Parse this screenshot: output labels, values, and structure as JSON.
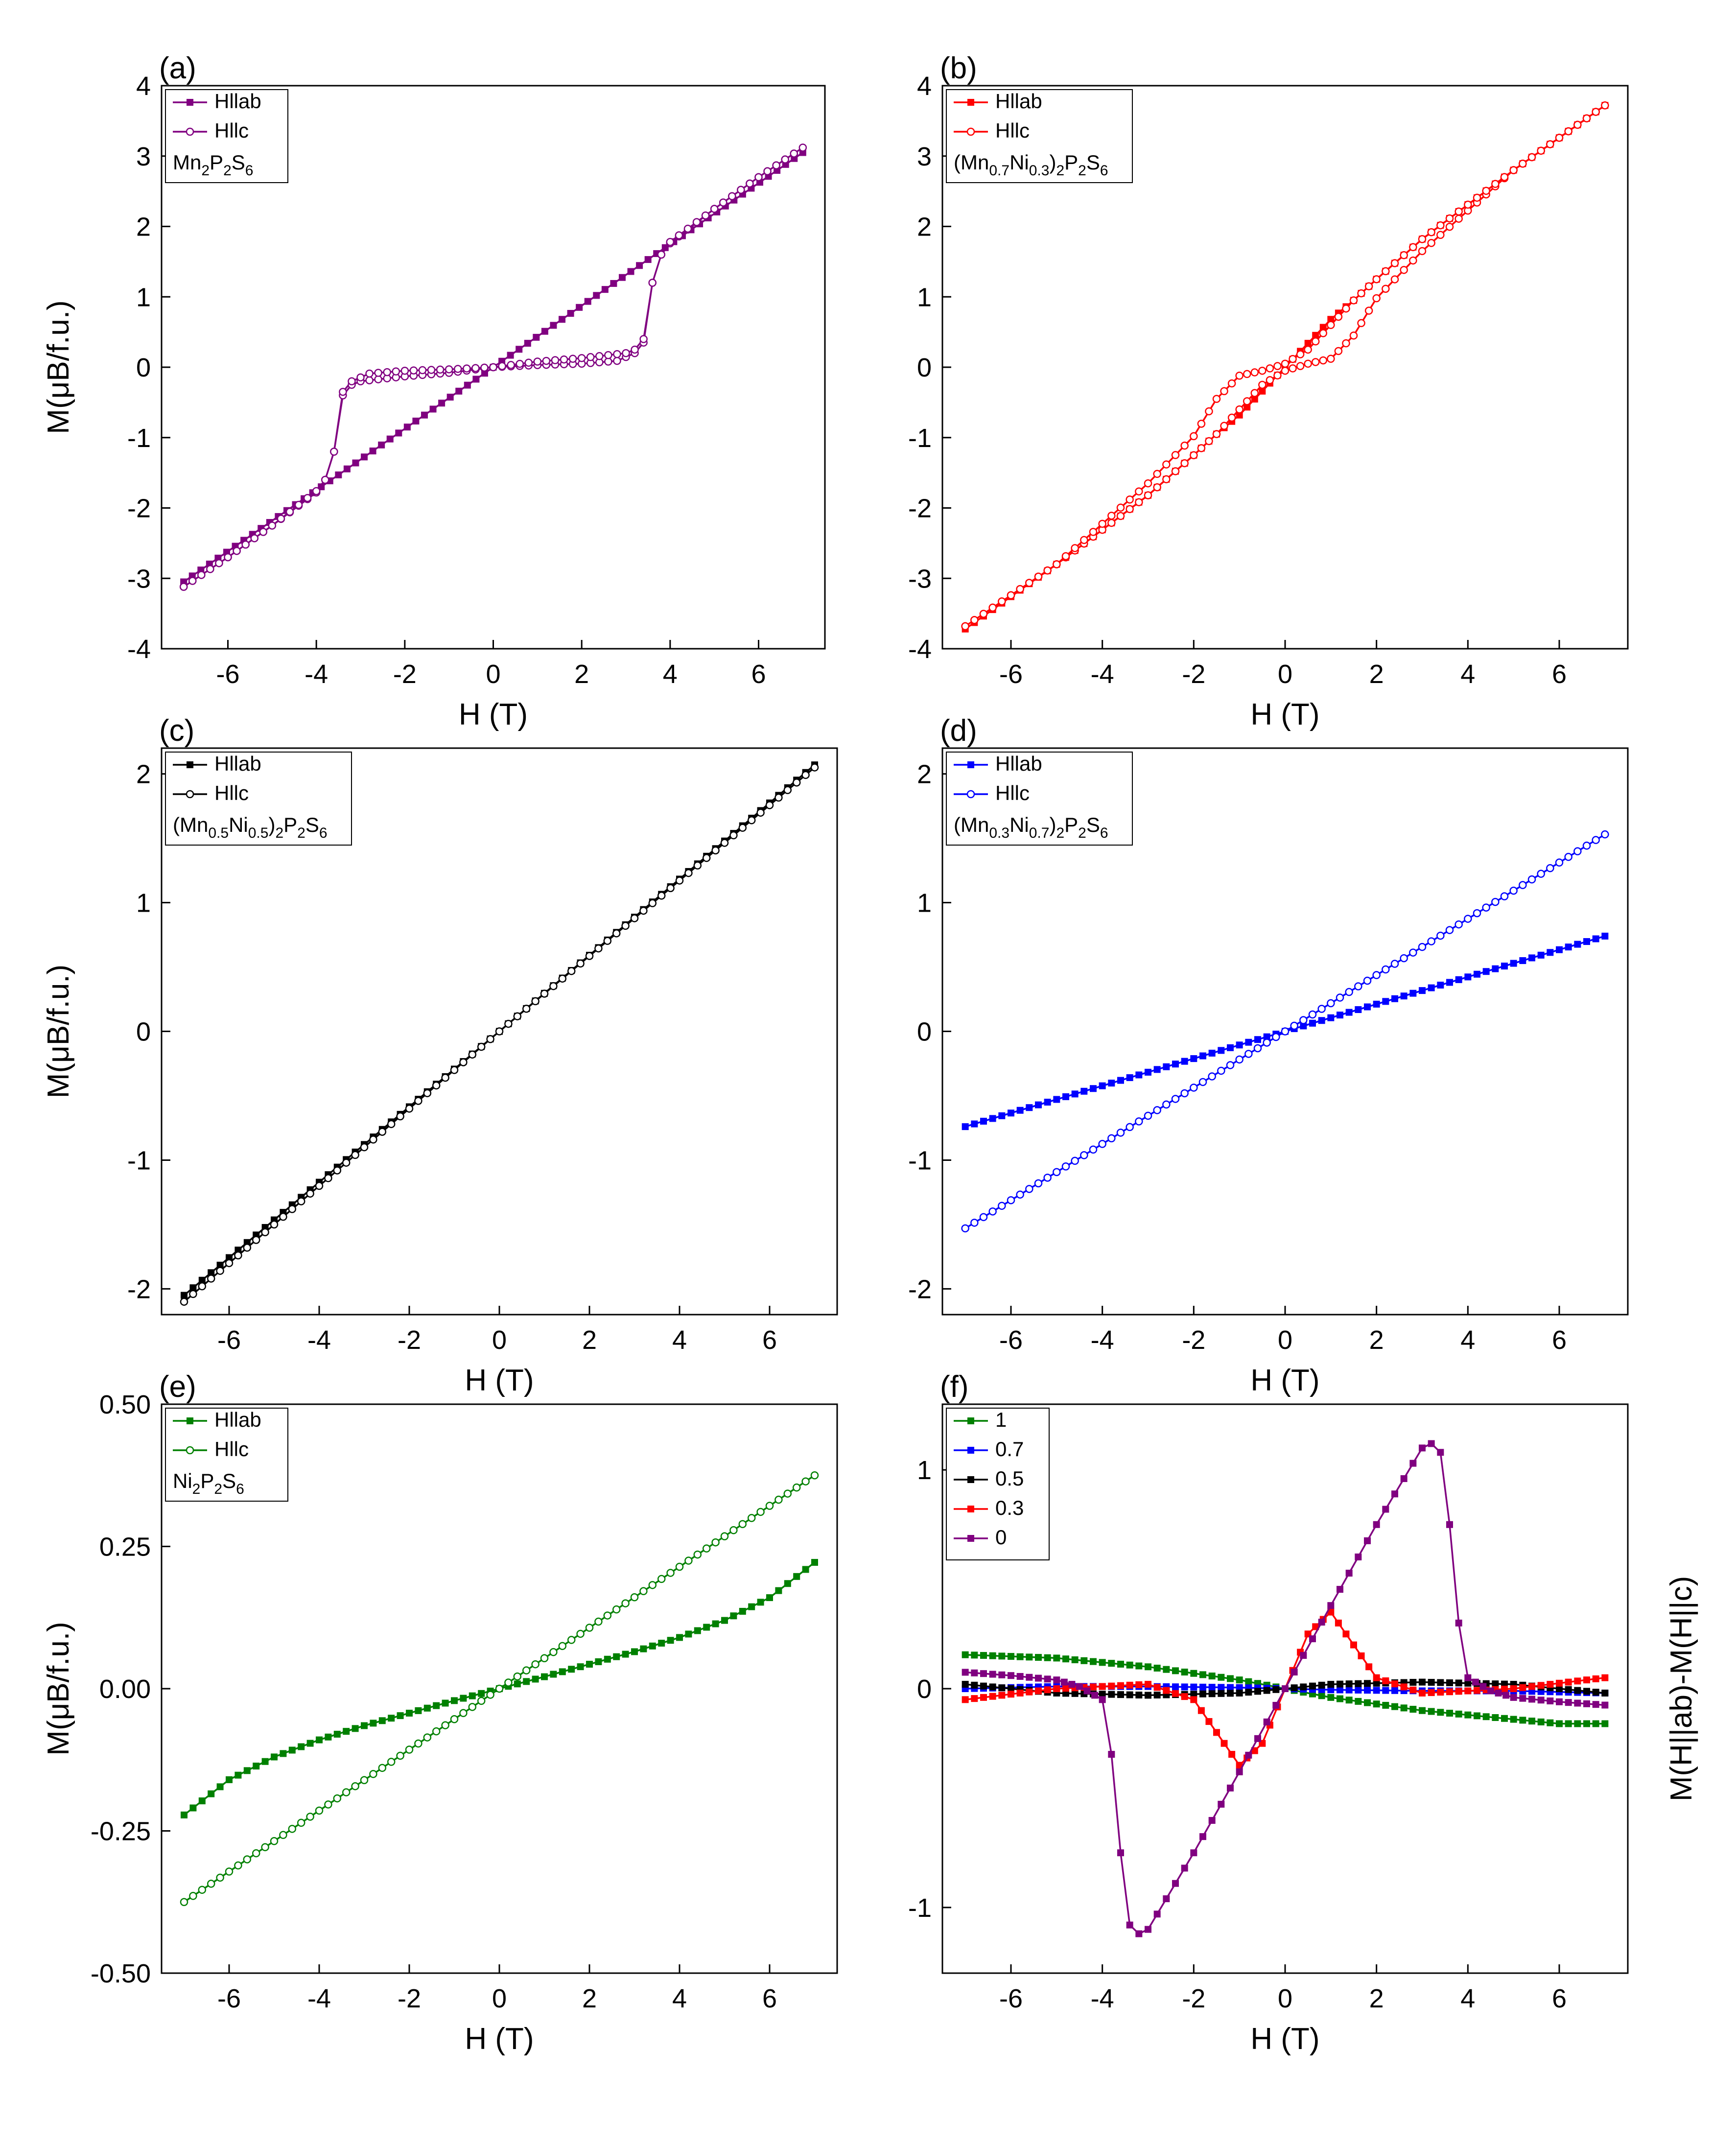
{
  "figure": {
    "colors": {
      "a": "#800080",
      "b": "#ff0000",
      "c": "#000000",
      "d": "#0000ff",
      "e": "#008000"
    }
  },
  "chart_data": [
    {
      "id": "a",
      "panel_label": "(a)",
      "type": "line",
      "title": "",
      "xlabel": "H (T)",
      "ylabel": "M(μB/f.u.)",
      "xlim": [
        -7.5,
        7.5
      ],
      "ylim": [
        -4,
        4
      ],
      "xticks": [
        -6,
        -4,
        -2,
        0,
        2,
        4,
        6
      ],
      "xtick_labels": [
        "-6",
        "-4",
        "-2",
        "0",
        "2",
        "4",
        "6"
      ],
      "yticks": [
        -4,
        -3,
        -2,
        -1,
        0,
        1,
        2,
        3,
        4
      ],
      "ytick_labels": [
        "-4",
        "-3",
        "-2",
        "-1",
        "0",
        "1",
        "2",
        "3",
        "4"
      ],
      "legend": {
        "position": "top-left",
        "entries": [
          "Hllab",
          "Hllc"
        ],
        "compound": "Mn2P2S6"
      },
      "series": [
        {
          "name": "Hllab",
          "color": "#800080",
          "marker": "filled-square",
          "x": [
            -7,
            -3.5,
            0,
            3.5,
            7
          ],
          "y": [
            -3.05,
            -1.53,
            0,
            1.53,
            3.05
          ]
        },
        {
          "name": "Hllc",
          "color": "#800080",
          "marker": "open-circle",
          "x": [
            -7,
            -6,
            -5,
            -4,
            -3.8,
            -3.6,
            -3.4,
            -3.2,
            -3,
            -2,
            -1,
            0,
            1,
            2,
            2.8,
            3.2,
            3.4,
            3.6,
            3.8,
            4,
            5,
            6,
            7,
            6,
            5,
            4,
            3.8,
            3.6,
            3.4,
            3.2,
            3,
            2,
            1,
            0,
            -1,
            -2,
            -2.8,
            -3.2,
            -3.4,
            -3.6,
            -3.8,
            -4,
            -5,
            -6,
            -7
          ],
          "y": [
            -3.12,
            -2.7,
            -2.25,
            -1.78,
            -1.6,
            -1.2,
            -0.4,
            -0.25,
            -0.2,
            -0.13,
            -0.08,
            0,
            0.03,
            0.05,
            0.09,
            0.2,
            0.35,
            1.2,
            1.6,
            1.76,
            2.25,
            2.7,
            3.12,
            2.7,
            2.25,
            1.78,
            1.6,
            1.2,
            0.4,
            0.25,
            0.2,
            0.13,
            0.08,
            0,
            -0.03,
            -0.05,
            -0.09,
            -0.2,
            -0.35,
            -1.2,
            -1.6,
            -1.76,
            -2.25,
            -2.7,
            -3.12
          ]
        }
      ]
    },
    {
      "id": "b",
      "panel_label": "(b)",
      "type": "line",
      "title": "",
      "xlabel": "H (T)",
      "ylabel": "",
      "xlim": [
        -7.5,
        7.5
      ],
      "ylim": [
        -4,
        4
      ],
      "xticks": [
        -6,
        -4,
        -2,
        0,
        2,
        4,
        6
      ],
      "xtick_labels": [
        "-6",
        "-4",
        "-2",
        "0",
        "2",
        "4",
        "6"
      ],
      "yticks": [
        -4,
        -3,
        -2,
        -1,
        0,
        1,
        2,
        3,
        4
      ],
      "ytick_labels": [
        "-4",
        "-3",
        "-2",
        "-1",
        "0",
        "1",
        "2",
        "3",
        "4"
      ],
      "legend": {
        "position": "top-left",
        "entries": [
          "Hllab",
          "Hllc"
        ],
        "compound": "(Mn0.7Ni0.3)2P2S6"
      },
      "series": [
        {
          "name": "Hllab",
          "color": "#ff0000",
          "marker": "filled-square",
          "x": [
            -7,
            -5,
            -3,
            -2,
            -1.5,
            -1,
            -0.5,
            0,
            0.5,
            1,
            1.5,
            2,
            3,
            5,
            7
          ],
          "y": [
            -3.72,
            -2.8,
            -1.82,
            -1.25,
            -0.95,
            -0.68,
            -0.34,
            0,
            0.34,
            0.68,
            0.95,
            1.25,
            1.82,
            2.8,
            3.72
          ]
        },
        {
          "name": "Hllc",
          "color": "#ff0000",
          "marker": "open-circle",
          "x": [
            -7,
            -5,
            -3,
            -2,
            -1.5,
            -1,
            -0.5,
            0,
            0.5,
            1,
            1.5,
            2,
            3,
            5,
            7,
            5,
            3,
            2,
            1.5,
            1,
            0.5,
            0,
            -0.5,
            -1,
            -1.5,
            -2,
            -3,
            -5,
            -7
          ],
          "y": [
            -3.68,
            -2.8,
            -1.82,
            -1.25,
            -0.95,
            -0.6,
            -0.25,
            -0.05,
            0.05,
            0.12,
            0.45,
            0.98,
            1.65,
            2.8,
            3.72,
            2.8,
            1.82,
            1.25,
            0.95,
            0.6,
            0.25,
            0.05,
            -0.05,
            -0.12,
            -0.45,
            -0.98,
            -1.65,
            -2.8,
            -3.68
          ]
        }
      ]
    },
    {
      "id": "c",
      "panel_label": "(c)",
      "type": "line",
      "title": "",
      "xlabel": "H (T)",
      "ylabel": "M(μB/f.u.)",
      "xlim": [
        -7.5,
        7.5
      ],
      "ylim": [
        -2.2,
        2.2
      ],
      "xticks": [
        -6,
        -4,
        -2,
        0,
        2,
        4,
        6
      ],
      "xtick_labels": [
        "-6",
        "-4",
        "-2",
        "0",
        "2",
        "4",
        "6"
      ],
      "yticks": [
        -2,
        -1,
        0,
        1,
        2
      ],
      "ytick_labels": [
        "-2",
        "-1",
        "0",
        "1",
        "2"
      ],
      "legend": {
        "position": "top-left",
        "entries": [
          "Hllab",
          "Hllc"
        ],
        "compound": "(Mn0.5Ni0.5)2P2S6"
      },
      "series": [
        {
          "name": "Hllab",
          "color": "#000000",
          "marker": "filled-square",
          "x": [
            -7,
            0,
            7
          ],
          "y": [
            -2.05,
            0,
            2.07
          ]
        },
        {
          "name": "Hllc",
          "color": "#000000",
          "marker": "open-circle",
          "x": [
            -7,
            0,
            7
          ],
          "y": [
            -2.1,
            0,
            2.05
          ]
        }
      ]
    },
    {
      "id": "d",
      "panel_label": "(d)",
      "type": "line",
      "title": "",
      "xlabel": "H (T)",
      "ylabel": "",
      "xlim": [
        -7.5,
        7.5
      ],
      "ylim": [
        -2.2,
        2.2
      ],
      "xticks": [
        -6,
        -4,
        -2,
        0,
        2,
        4,
        6
      ],
      "xtick_labels": [
        "-6",
        "-4",
        "-2",
        "0",
        "2",
        "4",
        "6"
      ],
      "yticks": [
        -2,
        -1,
        0,
        1,
        2
      ],
      "ytick_labels": [
        "-2",
        "-1",
        "0",
        "1",
        "2"
      ],
      "legend": {
        "position": "top-left",
        "entries": [
          "Hllab",
          "Hllc"
        ],
        "compound": "(Mn0.3Ni0.7)2P2S6"
      },
      "series": [
        {
          "name": "Hllab",
          "color": "#0000ff",
          "marker": "filled-square",
          "x": [
            -7,
            0,
            7
          ],
          "y": [
            -0.74,
            0,
            0.74
          ]
        },
        {
          "name": "Hllc",
          "color": "#0000ff",
          "marker": "open-circle",
          "x": [
            -7,
            0,
            7
          ],
          "y": [
            -1.53,
            0,
            1.53
          ]
        }
      ]
    },
    {
      "id": "e",
      "panel_label": "(e)",
      "type": "line",
      "title": "",
      "xlabel": "H (T)",
      "ylabel": "M(μB/f.u.)",
      "xlim": [
        -7.5,
        7.5
      ],
      "ylim": [
        -0.5,
        0.5
      ],
      "xticks": [
        -6,
        -4,
        -2,
        0,
        2,
        4,
        6
      ],
      "xtick_labels": [
        "-6",
        "-4",
        "-2",
        "0",
        "2",
        "4",
        "6"
      ],
      "yticks": [
        -0.5,
        -0.25,
        0,
        0.25,
        0.5
      ],
      "ytick_labels": [
        "-0.50",
        "-0.25",
        "0.00",
        "0.25",
        "0.50"
      ],
      "legend": {
        "position": "top-left",
        "entries": [
          "Hllab",
          "Hllc"
        ],
        "compound": "Ni2P2S6"
      },
      "series": [
        {
          "name": "Hllab",
          "color": "#008000",
          "marker": "filled-square",
          "x": [
            -7,
            -6,
            -5,
            -4,
            -3,
            -2,
            -1,
            0,
            1,
            2,
            3,
            4,
            5,
            6,
            7
          ],
          "y": [
            -0.222,
            -0.16,
            -0.12,
            -0.09,
            -0.065,
            -0.043,
            -0.021,
            0,
            0.021,
            0.043,
            0.065,
            0.09,
            0.12,
            0.16,
            0.222
          ]
        },
        {
          "name": "Hllc",
          "color": "#008000",
          "marker": "open-circle",
          "x": [
            -7,
            0,
            7
          ],
          "y": [
            -0.375,
            0,
            0.375
          ]
        }
      ]
    },
    {
      "id": "f",
      "panel_label": "(f)",
      "type": "line",
      "title": "",
      "xlabel": "H (T)",
      "ylabel": "M(H||ab)-M(H||c)",
      "xlim": [
        -7.5,
        7.5
      ],
      "ylim": [
        -1.3,
        1.3
      ],
      "xticks": [
        -6,
        -4,
        -2,
        0,
        2,
        4,
        6
      ],
      "xtick_labels": [
        "-6",
        "-4",
        "-2",
        "0",
        "2",
        "4",
        "6"
      ],
      "yticks": [
        -1,
        0,
        1
      ],
      "ytick_labels": [
        "-1",
        "0",
        "1"
      ],
      "legend": {
        "position": "top-left",
        "entries": [
          "1",
          "0.7",
          "0.5",
          "0.3",
          "0"
        ]
      },
      "series": [
        {
          "name": "1",
          "color": "#008000",
          "marker": "filled-square",
          "x": [
            -7,
            -5,
            -3,
            -1,
            0,
            1,
            3,
            5,
            6,
            7
          ],
          "y": [
            0.155,
            0.14,
            0.1,
            0.04,
            0,
            -0.04,
            -0.1,
            -0.14,
            -0.16,
            -0.16
          ]
        },
        {
          "name": "0.7",
          "color": "#0000ff",
          "marker": "filled-square",
          "x": [
            -7,
            -5,
            -3,
            -1,
            0,
            1,
            3,
            5,
            7
          ],
          "y": [
            0.0,
            0.01,
            0.01,
            0.005,
            0,
            -0.005,
            -0.01,
            -0.01,
            -0.02
          ]
        },
        {
          "name": "0.5",
          "color": "#000000",
          "marker": "filled-square",
          "x": [
            -7,
            -5,
            -3,
            -1,
            0,
            1,
            3,
            5,
            7
          ],
          "y": [
            0.02,
            -0.02,
            -0.03,
            -0.02,
            0,
            0.02,
            0.03,
            0.02,
            -0.02
          ]
        },
        {
          "name": "0.3",
          "color": "#ff0000",
          "marker": "filled-square",
          "x": [
            -7,
            -5,
            -3,
            -2,
            -1.5,
            -1,
            -0.5,
            0,
            0.5,
            1,
            1.5,
            2,
            3,
            5,
            7
          ],
          "y": [
            -0.05,
            0.0,
            0.02,
            -0.05,
            -0.2,
            -0.35,
            -0.25,
            0,
            0.25,
            0.35,
            0.2,
            0.05,
            -0.02,
            0.0,
            0.05
          ]
        },
        {
          "name": "0",
          "color": "#800080",
          "marker": "filled-square",
          "x": [
            -7,
            -6,
            -5,
            -4.5,
            -4,
            -3.8,
            -3.6,
            -3.4,
            -3.2,
            -3,
            -2,
            -1,
            0,
            1,
            2,
            3,
            3.2,
            3.4,
            3.6,
            3.8,
            4,
            4.5,
            5,
            6,
            7
          ],
          "y": [
            0.075,
            0.06,
            0.04,
            0.01,
            -0.05,
            -0.3,
            -0.75,
            -1.08,
            -1.12,
            -1.1,
            -0.75,
            -0.38,
            0,
            0.38,
            0.75,
            1.1,
            1.12,
            1.08,
            0.75,
            0.3,
            0.05,
            -0.01,
            -0.04,
            -0.06,
            -0.075
          ]
        }
      ]
    }
  ]
}
